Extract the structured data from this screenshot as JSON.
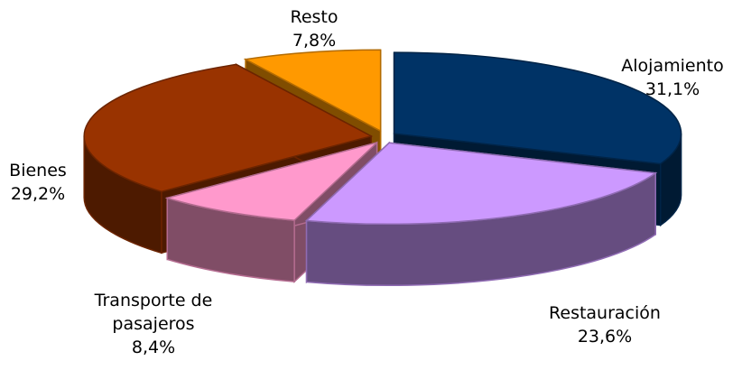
{
  "chart_data": {
    "type": "pie3d",
    "categories": [
      "Alojamiento",
      "Restauración",
      "Transporte de pasajeros",
      "Bienes",
      "Resto"
    ],
    "values": [
      31.1,
      23.6,
      8.4,
      29.2,
      7.8
    ],
    "value_labels": [
      "31,1%",
      "23,6%",
      "8,4%",
      "29,2%",
      "7,8%"
    ],
    "colors": [
      "#003366",
      "#cc99ff",
      "#ff99cc",
      "#993300",
      "#ff9900"
    ]
  }
}
